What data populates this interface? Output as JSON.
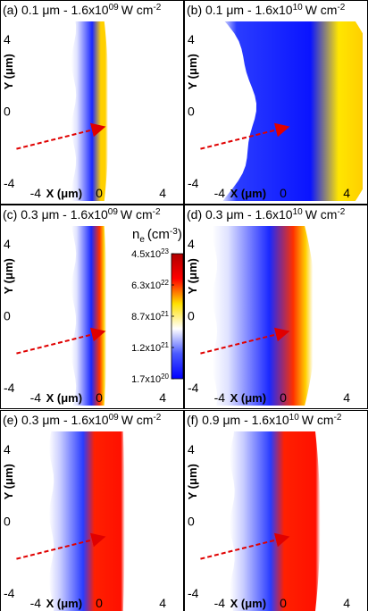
{
  "chart_data": [
    {
      "type": "heatmap",
      "panel_label": "(a)",
      "title": "(a) 0.1 μm - 1.6x10",
      "title_exp": "09",
      "title_unit": "W cm",
      "title_unit_exp": "-2",
      "xlabel": "X (μm)",
      "ylabel": "Y (μm)",
      "x_ticks": [
        "-4",
        "0",
        "4"
      ],
      "y_ticks": [
        "4",
        "0",
        "-4"
      ],
      "xlim": [
        -5,
        5
      ],
      "ylim": [
        -5,
        5
      ],
      "front_shape": "narrow",
      "front_x": 0,
      "front_curv": 0.15,
      "peak_color": "#ffd000"
    },
    {
      "type": "heatmap",
      "panel_label": "(b)",
      "title": "(b) 0.1 μm - 1.6x10",
      "title_exp": "10",
      "title_unit": "W cm",
      "title_unit_exp": "-2",
      "xlabel": "X (μm)",
      "ylabel": "Y (μm)",
      "x_ticks": [
        "-4",
        "0",
        "4"
      ],
      "y_ticks": [
        "4",
        "0",
        "-4"
      ],
      "xlim": [
        -5,
        5
      ],
      "ylim": [
        -5,
        5
      ],
      "front_shape": "chevron",
      "front_x": 1.2,
      "front_curv": 0.9,
      "peak_color": "#ffe000"
    },
    {
      "type": "heatmap",
      "panel_label": "(c)",
      "title": "(c) 0.3 μm - 1.6x10",
      "title_exp": "09",
      "title_unit": "W cm",
      "title_unit_exp": "-2",
      "xlabel": "X (μm)",
      "ylabel": "Y (μm)",
      "x_ticks": [
        "-4",
        "0",
        "4"
      ],
      "y_ticks": [
        "4",
        "0",
        "-4"
      ],
      "xlim": [
        -5,
        5
      ],
      "ylim": [
        -5,
        5
      ],
      "front_shape": "narrow",
      "front_x": 0.1,
      "front_curv": 0.1,
      "peak_color": "#ff3000"
    },
    {
      "type": "heatmap",
      "panel_label": "(d)",
      "title": "(d) 0.3 μm - 1.6x10",
      "title_exp": "10",
      "title_unit": "W cm",
      "title_unit_exp": "-2",
      "xlabel": "X (μm)",
      "ylabel": "Y (μm)",
      "x_ticks": [
        "-4",
        "0",
        "4"
      ],
      "y_ticks": [
        "4",
        "0",
        "-4"
      ],
      "xlim": [
        -5,
        5
      ],
      "ylim": [
        -5,
        5
      ],
      "front_shape": "wide",
      "front_x": 0.4,
      "front_curv": 0.35,
      "peak_color": "#ff3000"
    },
    {
      "type": "heatmap",
      "panel_label": "(e)",
      "title": "(e) 0.3 μm - 1.6x10",
      "title_exp": "09",
      "title_unit": "W cm",
      "title_unit_exp": "-2",
      "xlabel": "X (μm)",
      "ylabel": "Y (μm)",
      "x_ticks": [
        "-4",
        "0",
        "4"
      ],
      "y_ticks": [
        "4",
        "0",
        "-4"
      ],
      "xlim": [
        -5,
        5
      ],
      "ylim": [
        -5,
        5
      ],
      "front_shape": "slab",
      "front_x": 0.5,
      "front_curv": 0.05,
      "peak_color": "#ff2000"
    },
    {
      "type": "heatmap",
      "panel_label": "(f)",
      "title": "(f) 0.9 μm - 1.6x10",
      "title_exp": "10",
      "title_unit": "W cm",
      "title_unit_exp": "-2",
      "xlabel": "X (μm)",
      "ylabel": "Y (μm)",
      "x_ticks": [
        "-4",
        "0",
        "4"
      ],
      "y_ticks": [
        "4",
        "0",
        "-4"
      ],
      "xlim": [
        -5,
        5
      ],
      "ylim": [
        -5,
        5
      ],
      "front_shape": "slab-wide",
      "front_x": 0.6,
      "front_curv": 0.15,
      "peak_color": "#ff2000"
    }
  ],
  "colorbar": {
    "title": "n",
    "title_sub": "e",
    "title_unit": "(cm",
    "title_unit_exp": "-3",
    "title_close": ")",
    "ticks": [
      {
        "mant": "4.5x10",
        "exp": "23",
        "frac": 1.0
      },
      {
        "mant": "6.3x10",
        "exp": "22",
        "frac": 0.75
      },
      {
        "mant": "8.7x10",
        "exp": "21",
        "frac": 0.5
      },
      {
        "mant": "1.2x10",
        "exp": "21",
        "frac": 0.25
      },
      {
        "mant": "1.7x10",
        "exp": "20",
        "frac": 0.0
      }
    ],
    "colors": [
      "#0000ff",
      "#4a5aff",
      "#ffffff",
      "#ffe000",
      "#ff0000",
      "#b00000"
    ]
  },
  "arrow_color": "#e00000"
}
